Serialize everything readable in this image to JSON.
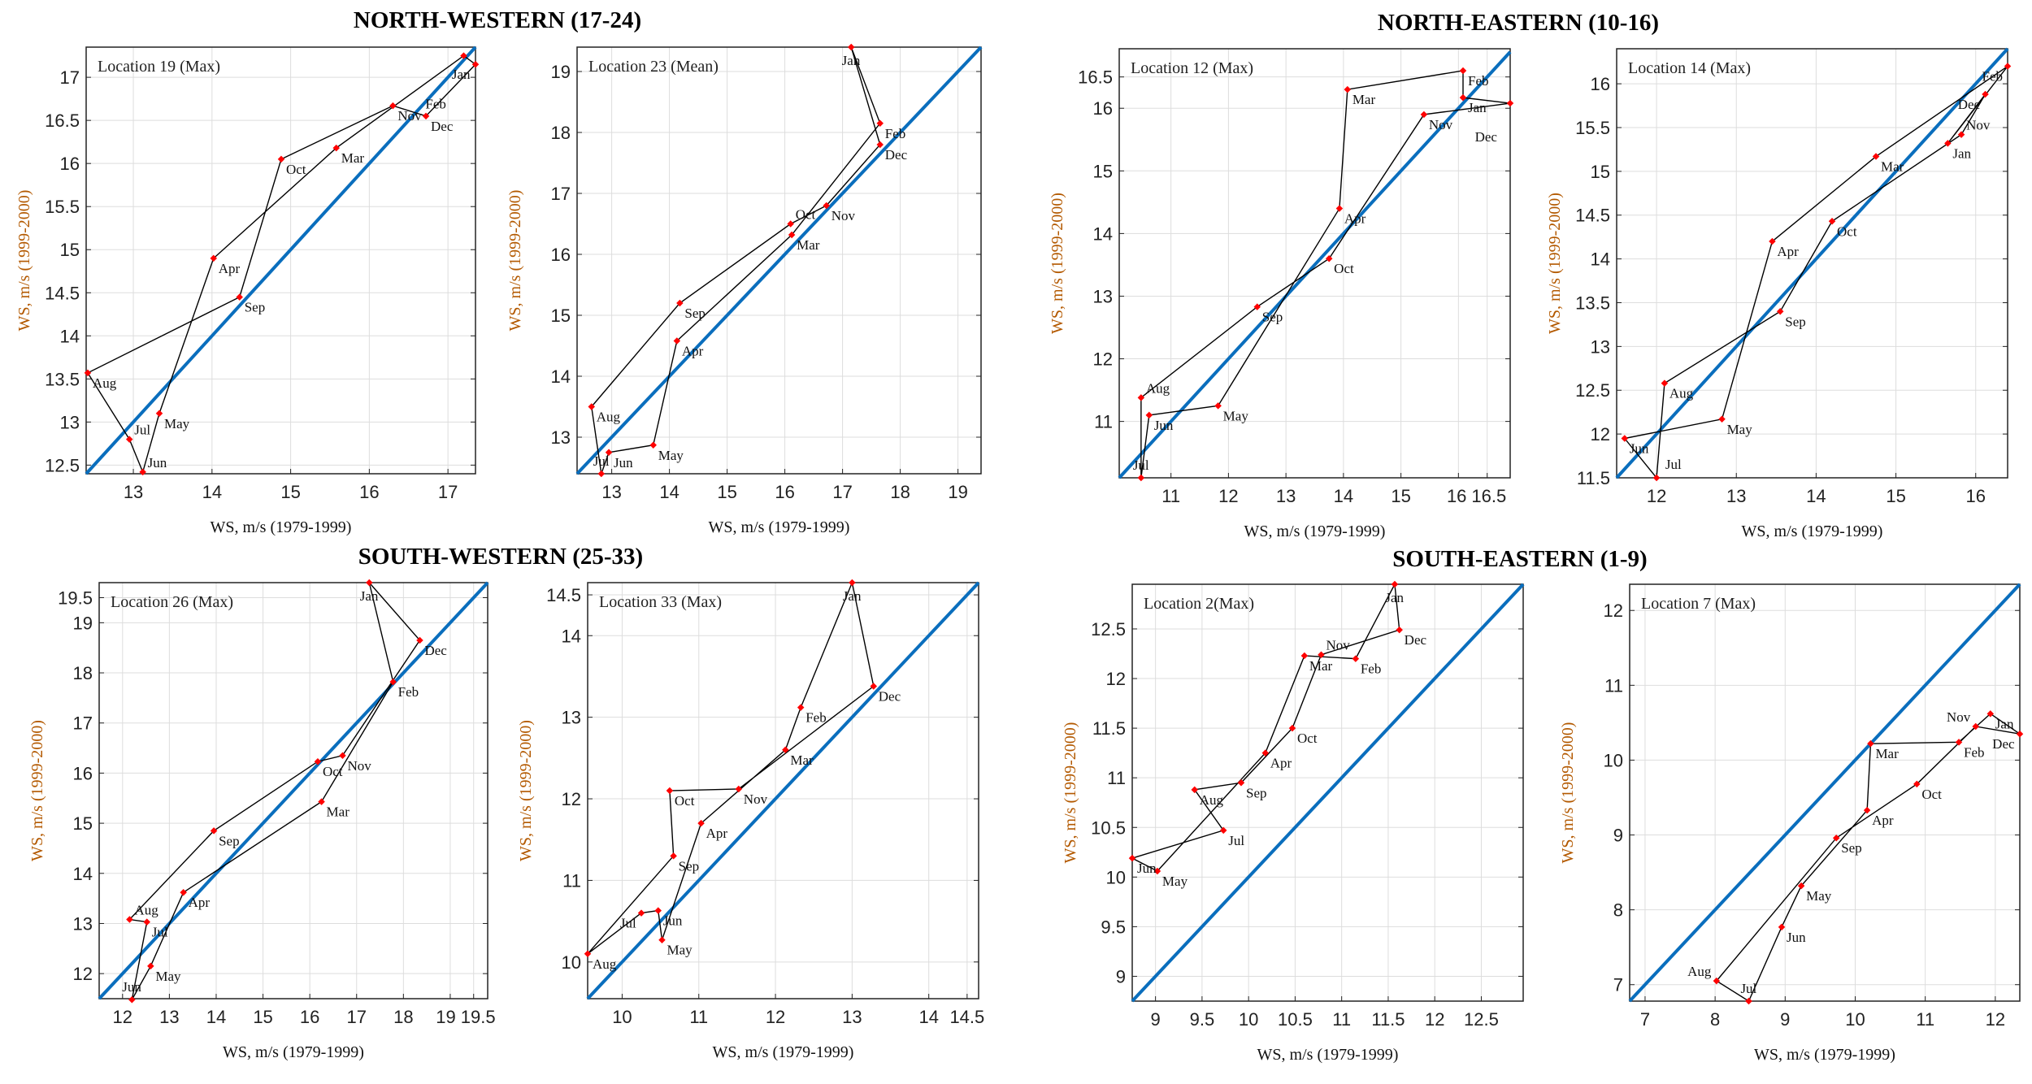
{
  "colors": {
    "identity_line": "#0a6ebd",
    "loop_line": "#000000",
    "marker": "#ff0000",
    "grid": "#dddddd",
    "ylabel": "#b35900"
  },
  "chart_data": {
    "type": "scatter",
    "months": [
      "Jan",
      "Feb",
      "Mar",
      "Apr",
      "May",
      "Jun",
      "Jul",
      "Aug",
      "Sep",
      "Oct",
      "Nov",
      "Dec"
    ],
    "group_titles": [
      "NORTH-WESTERN (17-24)",
      "NORTH-EASTERN (10-16)",
      "SOUTH-WESTERN (25-33)",
      "SOUTH-EASTERN (1-9)"
    ],
    "xlabel": "WS, m/s (1979-1999)",
    "ylabel": "WS, m/s (1999-2000)",
    "grid": true,
    "panels": [
      {
        "group": 0,
        "label": "Location 19 (Max)",
        "xlim": [
          12.4,
          17.35
        ],
        "ylim": [
          12.4,
          17.35
        ],
        "xticks": [
          13,
          14,
          15,
          16,
          17
        ],
        "yticks": [
          12.5,
          13,
          13.5,
          14,
          14.5,
          15,
          15.5,
          16,
          16.5,
          17
        ],
        "x": [
          17.35,
          17.2,
          15.58,
          14.02,
          13.33,
          13.12,
          12.95,
          12.42,
          14.35,
          14.88,
          16.3,
          16.72
        ],
        "y": [
          17.15,
          17.25,
          16.18,
          14.9,
          13.1,
          12.42,
          12.8,
          13.57,
          14.45,
          16.05,
          16.67,
          16.55
        ]
      },
      {
        "group": 0,
        "label": "Location 23 (Mean)",
        "xlim": [
          12.4,
          19.4
        ],
        "ylim": [
          12.4,
          19.4
        ],
        "xticks": [
          13,
          14,
          15,
          16,
          17,
          18,
          19
        ],
        "yticks": [
          13,
          14,
          15,
          16,
          17,
          18,
          19
        ],
        "x": [
          17.15,
          17.65,
          16.12,
          14.13,
          13.72,
          12.95,
          12.82,
          12.65,
          14.18,
          16.1,
          16.72,
          17.65
        ],
        "y": [
          19.4,
          18.15,
          16.32,
          14.58,
          12.87,
          12.75,
          12.4,
          13.5,
          15.2,
          16.5,
          16.8,
          17.8
        ]
      },
      {
        "group": 1,
        "label": "Location 12 (Max)",
        "xlim": [
          10.1,
          16.9
        ],
        "ylim": [
          10.1,
          16.95
        ],
        "xticks": [
          11,
          12,
          13,
          14,
          15,
          16,
          16.5
        ],
        "yticks": [
          11,
          12,
          13,
          14,
          15,
          16,
          16.5
        ],
        "x": [
          16.08,
          16.08,
          14.07,
          13.93,
          11.82,
          10.62,
          10.48,
          10.48,
          12.5,
          13.75,
          15.4,
          16.9
        ],
        "y": [
          16.17,
          16.6,
          16.3,
          14.4,
          11.25,
          11.1,
          10.1,
          11.38,
          12.83,
          13.6,
          15.9,
          16.08
        ]
      },
      {
        "group": 1,
        "label": "Location 14 (Max)",
        "xlim": [
          11.5,
          16.4
        ],
        "ylim": [
          11.5,
          16.4
        ],
        "xticks": [
          12,
          13,
          14,
          15,
          16
        ],
        "yticks": [
          11.5,
          12,
          12.5,
          13,
          13.5,
          14,
          14.5,
          15,
          15.5,
          16
        ],
        "x": [
          15.65,
          16.4,
          14.75,
          13.45,
          12.82,
          11.6,
          12.0,
          12.1,
          13.55,
          14.2,
          15.82,
          16.12
        ],
        "y": [
          15.32,
          16.2,
          15.17,
          14.2,
          12.17,
          11.95,
          11.5,
          12.58,
          13.4,
          14.43,
          15.42,
          15.88
        ]
      },
      {
        "group": 2,
        "label": "Location 26 (Max)",
        "xlim": [
          11.5,
          19.8
        ],
        "ylim": [
          11.5,
          19.8
        ],
        "xticks": [
          12,
          13,
          14,
          15,
          16,
          17,
          18,
          19,
          19.5
        ],
        "yticks": [
          12,
          13,
          14,
          15,
          16,
          17,
          18,
          19,
          19.5
        ],
        "x": [
          17.27,
          17.78,
          16.25,
          13.3,
          12.6,
          12.2,
          12.52,
          12.15,
          13.95,
          16.17,
          16.7,
          18.35
        ],
        "y": [
          19.8,
          17.82,
          15.43,
          13.62,
          12.15,
          11.48,
          13.03,
          13.08,
          14.85,
          16.23,
          16.35,
          18.65
        ]
      },
      {
        "group": 2,
        "label": "Location 33 (Max)",
        "xlim": [
          9.55,
          14.65
        ],
        "ylim": [
          9.55,
          14.65
        ],
        "xticks": [
          10,
          11,
          12,
          13,
          14,
          14.5
        ],
        "yticks": [
          10,
          11,
          12,
          13,
          14,
          14.5
        ],
        "x": [
          13.0,
          12.33,
          12.13,
          11.03,
          10.52,
          10.47,
          10.25,
          9.55,
          10.67,
          10.62,
          11.52,
          13.28
        ],
        "y": [
          14.65,
          13.12,
          12.6,
          11.7,
          10.27,
          10.63,
          10.6,
          10.1,
          11.3,
          12.1,
          12.12,
          13.38
        ]
      },
      {
        "group": 3,
        "label": "Location 2(Max)",
        "xlim": [
          8.75,
          12.95
        ],
        "ylim": [
          8.75,
          12.95
        ],
        "xticks": [
          9,
          9.5,
          10,
          10.5,
          11,
          11.5,
          12,
          12.5
        ],
        "yticks": [
          9,
          9.5,
          10,
          10.5,
          11,
          11.5,
          12,
          12.5
        ],
        "x": [
          11.57,
          11.15,
          10.6,
          10.18,
          9.02,
          8.75,
          9.73,
          9.42,
          9.92,
          10.47,
          10.78,
          11.62
        ],
        "y": [
          12.95,
          12.2,
          12.23,
          11.25,
          10.06,
          10.19,
          10.47,
          10.88,
          10.95,
          11.5,
          12.24,
          12.49
        ]
      },
      {
        "group": 3,
        "label": "Location 7 (Max)",
        "xlim": [
          6.78,
          12.35
        ],
        "ylim": [
          6.78,
          12.35
        ],
        "xticks": [
          7,
          8,
          9,
          10,
          11,
          12
        ],
        "yticks": [
          7,
          8,
          9,
          10,
          11,
          12
        ],
        "x": [
          11.93,
          11.48,
          10.22,
          10.17,
          9.23,
          8.95,
          8.48,
          8.02,
          9.73,
          10.88,
          11.72,
          12.35
        ],
        "y": [
          10.62,
          10.24,
          10.22,
          9.33,
          8.32,
          7.77,
          6.78,
          7.05,
          8.96,
          9.68,
          10.45,
          10.35
        ]
      }
    ]
  }
}
